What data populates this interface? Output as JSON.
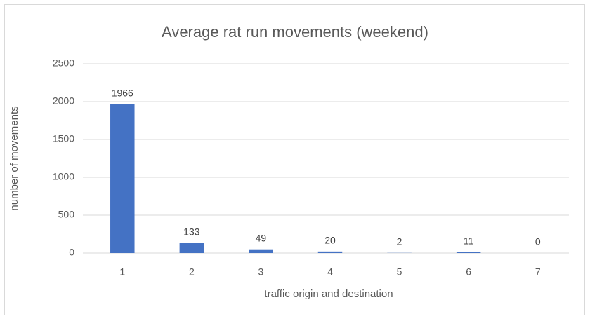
{
  "chart_data": {
    "type": "bar",
    "title": "Average rat run movements (weekend)",
    "x_label": "traffic origin and destination",
    "y_label": "number of movements",
    "categories": [
      "1",
      "2",
      "3",
      "4",
      "5",
      "6",
      "7"
    ],
    "values": [
      1966,
      133,
      49,
      20,
      2,
      11,
      0
    ],
    "color": "#4472c4",
    "ylim": [
      0,
      2500
    ],
    "yticks": [
      0,
      500,
      1000,
      1500,
      2000,
      2500
    ],
    "grid": true,
    "data_labels": true
  }
}
